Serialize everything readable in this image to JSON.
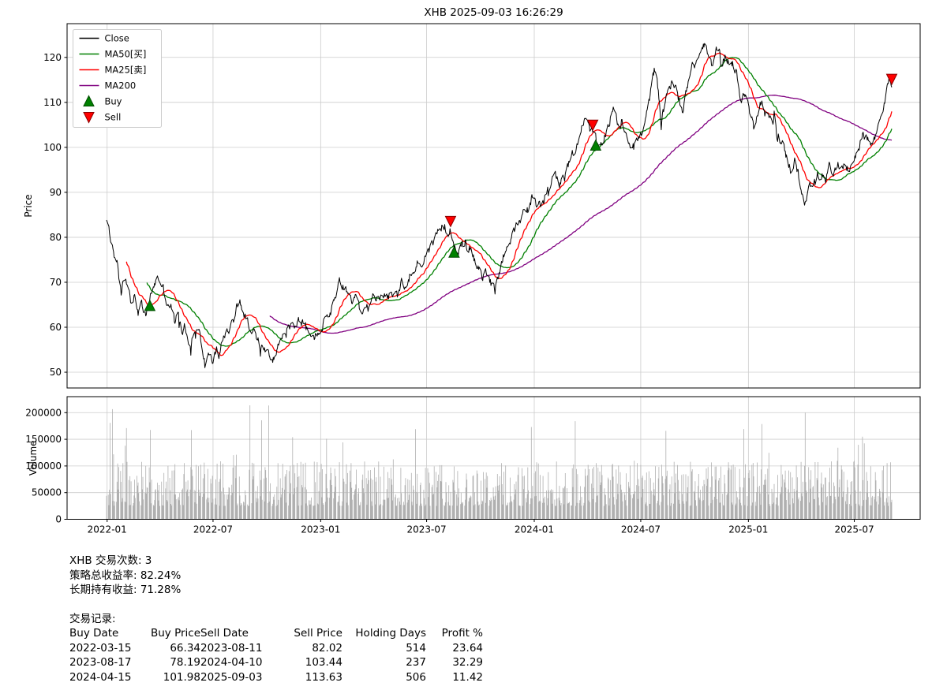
{
  "chart_data": [
    {
      "type": "line",
      "title": "XHB 2025-09-03 16:26:29",
      "ylabel": "Price",
      "ylim": [
        46.5,
        127.5
      ],
      "yticks": [
        50,
        60,
        70,
        80,
        90,
        100,
        110,
        120
      ],
      "xtick_labels": [
        "2022-01",
        "2022-07",
        "2023-01",
        "2023-07",
        "2024-01",
        "2024-07",
        "2025-01",
        "2025-07"
      ],
      "xtick_dates": [
        "2022-01-01",
        "2022-07-01",
        "2023-01-01",
        "2023-07-01",
        "2024-01-01",
        "2024-07-01",
        "2025-01-01",
        "2025-07-01"
      ],
      "x_range": [
        "2021-12-31",
        "2025-09-03"
      ],
      "grid": true,
      "legend_position": "upper left",
      "legend": [
        {
          "label": "Close",
          "type": "line",
          "color": "#000000"
        },
        {
          "label": "MA50[买]",
          "type": "line",
          "color": "#008000"
        },
        {
          "label": "MA25[卖]",
          "type": "line",
          "color": "#ff0000"
        },
        {
          "label": "MA200",
          "type": "line",
          "color": "#800080"
        },
        {
          "label": "Buy",
          "type": "marker-up",
          "color": "#008000"
        },
        {
          "label": "Sell",
          "type": "marker-down",
          "color": "#ff0000"
        }
      ],
      "series": [
        {
          "name": "Close",
          "color": "#000000",
          "anchors": [
            [
              "2021-12-31",
              83.0
            ],
            [
              "2022-01-04",
              82.0
            ],
            [
              "2022-01-07",
              79.5
            ],
            [
              "2022-01-12",
              77.0
            ],
            [
              "2022-01-18",
              74.0
            ],
            [
              "2022-01-21",
              70.5
            ],
            [
              "2022-01-25",
              67.5
            ],
            [
              "2022-01-28",
              69.5
            ],
            [
              "2022-02-02",
              71.0
            ],
            [
              "2022-02-08",
              68.0
            ],
            [
              "2022-02-11",
              66.0
            ],
            [
              "2022-02-16",
              67.0
            ],
            [
              "2022-02-23",
              63.5
            ],
            [
              "2022-03-01",
              65.0
            ],
            [
              "2022-03-08",
              62.5
            ],
            [
              "2022-03-15",
              66.3
            ],
            [
              "2022-03-22",
              69.5
            ],
            [
              "2022-03-29",
              71.0
            ],
            [
              "2022-04-05",
              69.5
            ],
            [
              "2022-04-12",
              66.0
            ],
            [
              "2022-04-20",
              64.5
            ],
            [
              "2022-04-26",
              61.5
            ],
            [
              "2022-05-03",
              62.5
            ],
            [
              "2022-05-10",
              58.5
            ],
            [
              "2022-05-13",
              60.0
            ],
            [
              "2022-05-18",
              57.0
            ],
            [
              "2022-05-24",
              56.5
            ],
            [
              "2022-05-31",
              59.5
            ],
            [
              "2022-06-07",
              60.0
            ],
            [
              "2022-06-13",
              54.5
            ],
            [
              "2022-06-17",
              51.5
            ],
            [
              "2022-06-24",
              54.0
            ],
            [
              "2022-06-30",
              52.5
            ],
            [
              "2022-07-07",
              55.5
            ],
            [
              "2022-07-14",
              55.0
            ],
            [
              "2022-07-21",
              58.0
            ],
            [
              "2022-07-28",
              59.5
            ],
            [
              "2022-08-03",
              61.0
            ],
            [
              "2022-08-10",
              64.0
            ],
            [
              "2022-08-16",
              66.3
            ],
            [
              "2022-08-23",
              62.5
            ],
            [
              "2022-08-30",
              61.0
            ],
            [
              "2022-09-06",
              60.0
            ],
            [
              "2022-09-13",
              57.0
            ],
            [
              "2022-09-20",
              56.0
            ],
            [
              "2022-09-27",
              54.5
            ],
            [
              "2022-09-30",
              55.5
            ],
            [
              "2022-10-06",
              54.5
            ],
            [
              "2022-10-12",
              53.0
            ],
            [
              "2022-10-20",
              55.5
            ],
            [
              "2022-10-27",
              58.5
            ],
            [
              "2022-11-03",
              57.5
            ],
            [
              "2022-11-10",
              61.0
            ],
            [
              "2022-11-17",
              60.0
            ],
            [
              "2022-11-23",
              61.5
            ],
            [
              "2022-12-01",
              61.0
            ],
            [
              "2022-12-08",
              59.5
            ],
            [
              "2022-12-15",
              57.5
            ],
            [
              "2022-12-22",
              58.0
            ],
            [
              "2022-12-29",
              58.5
            ],
            [
              "2023-01-05",
              60.5
            ],
            [
              "2023-01-12",
              63.0
            ],
            [
              "2023-01-19",
              63.5
            ],
            [
              "2023-01-26",
              66.0
            ],
            [
              "2023-02-02",
              70.0
            ],
            [
              "2023-02-09",
              69.0
            ],
            [
              "2023-02-16",
              68.0
            ],
            [
              "2023-02-24",
              64.5
            ],
            [
              "2023-03-03",
              66.5
            ],
            [
              "2023-03-10",
              63.0
            ],
            [
              "2023-03-17",
              63.5
            ],
            [
              "2023-03-24",
              64.5
            ],
            [
              "2023-03-31",
              66.5
            ],
            [
              "2023-04-06",
              66.0
            ],
            [
              "2023-04-14",
              67.5
            ],
            [
              "2023-04-21",
              67.5
            ],
            [
              "2023-04-28",
              67.0
            ],
            [
              "2023-05-05",
              66.5
            ],
            [
              "2023-05-12",
              67.0
            ],
            [
              "2023-05-19",
              69.5
            ],
            [
              "2023-05-25",
              68.5
            ],
            [
              "2023-06-02",
              71.5
            ],
            [
              "2023-06-09",
              72.0
            ],
            [
              "2023-06-16",
              74.5
            ],
            [
              "2023-06-23",
              74.0
            ],
            [
              "2023-06-30",
              76.5
            ],
            [
              "2023-07-07",
              77.5
            ],
            [
              "2023-07-14",
              79.5
            ],
            [
              "2023-07-21",
              81.5
            ],
            [
              "2023-07-27",
              83.0
            ],
            [
              "2023-08-01",
              82.0
            ],
            [
              "2023-08-07",
              81.5
            ],
            [
              "2023-08-11",
              82.0
            ],
            [
              "2023-08-17",
              78.2
            ],
            [
              "2023-08-24",
              76.5
            ],
            [
              "2023-08-31",
              78.0
            ],
            [
              "2023-09-07",
              77.5
            ],
            [
              "2023-09-14",
              78.0
            ],
            [
              "2023-09-21",
              74.5
            ],
            [
              "2023-09-28",
              72.5
            ],
            [
              "2023-10-04",
              71.5
            ],
            [
              "2023-10-11",
              72.0
            ],
            [
              "2023-10-18",
              70.0
            ],
            [
              "2023-10-25",
              69.0
            ],
            [
              "2023-11-01",
              71.5
            ],
            [
              "2023-11-08",
              75.5
            ],
            [
              "2023-11-15",
              78.5
            ],
            [
              "2023-11-22",
              79.5
            ],
            [
              "2023-12-01",
              82.0
            ],
            [
              "2023-12-08",
              83.0
            ],
            [
              "2023-12-14",
              86.5
            ],
            [
              "2023-12-21",
              86.0
            ],
            [
              "2023-12-28",
              89.0
            ],
            [
              "2024-01-04",
              87.0
            ],
            [
              "2024-01-11",
              87.5
            ],
            [
              "2024-01-18",
              88.5
            ],
            [
              "2024-01-25",
              91.5
            ],
            [
              "2024-02-01",
              92.5
            ],
            [
              "2024-02-08",
              94.0
            ],
            [
              "2024-02-13",
              91.5
            ],
            [
              "2024-02-21",
              93.0
            ],
            [
              "2024-02-28",
              95.5
            ],
            [
              "2024-03-06",
              98.5
            ],
            [
              "2024-03-13",
              100.5
            ],
            [
              "2024-03-20",
              103.5
            ],
            [
              "2024-03-27",
              106.0
            ],
            [
              "2024-04-03",
              104.5
            ],
            [
              "2024-04-10",
              103.4
            ],
            [
              "2024-04-15",
              102.0
            ],
            [
              "2024-04-19",
              99.0
            ],
            [
              "2024-04-26",
              101.5
            ],
            [
              "2024-05-03",
              103.5
            ],
            [
              "2024-05-10",
              106.5
            ],
            [
              "2024-05-16",
              108.5
            ],
            [
              "2024-05-23",
              105.5
            ],
            [
              "2024-05-31",
              104.5
            ],
            [
              "2024-06-07",
              103.0
            ],
            [
              "2024-06-14",
              100.5
            ],
            [
              "2024-06-21",
              101.5
            ],
            [
              "2024-06-28",
              102.0
            ],
            [
              "2024-07-05",
              103.5
            ],
            [
              "2024-07-11",
              107.0
            ],
            [
              "2024-07-16",
              111.0
            ],
            [
              "2024-07-24",
              117.0
            ],
            [
              "2024-07-31",
              113.0
            ],
            [
              "2024-08-05",
              103.5
            ],
            [
              "2024-08-08",
              107.5
            ],
            [
              "2024-08-15",
              111.5
            ],
            [
              "2024-08-22",
              114.5
            ],
            [
              "2024-08-29",
              114.0
            ],
            [
              "2024-09-05",
              110.0
            ],
            [
              "2024-09-11",
              108.5
            ],
            [
              "2024-09-18",
              114.0
            ],
            [
              "2024-09-26",
              117.5
            ],
            [
              "2024-10-04",
              119.0
            ],
            [
              "2024-10-11",
              121.0
            ],
            [
              "2024-10-17",
              123.0
            ],
            [
              "2024-10-25",
              120.0
            ],
            [
              "2024-10-31",
              118.0
            ],
            [
              "2024-11-06",
              121.5
            ],
            [
              "2024-11-11",
              122.5
            ],
            [
              "2024-11-15",
              119.0
            ],
            [
              "2024-11-22",
              120.0
            ],
            [
              "2024-11-27",
              119.5
            ],
            [
              "2024-12-05",
              118.0
            ],
            [
              "2024-12-12",
              116.0
            ],
            [
              "2024-12-18",
              110.5
            ],
            [
              "2024-12-27",
              112.5
            ],
            [
              "2025-01-03",
              108.0
            ],
            [
              "2025-01-10",
              104.5
            ],
            [
              "2025-01-16",
              108.0
            ],
            [
              "2025-01-23",
              110.5
            ],
            [
              "2025-01-31",
              107.0
            ],
            [
              "2025-02-07",
              106.5
            ],
            [
              "2025-02-14",
              105.5
            ],
            [
              "2025-02-21",
              101.0
            ],
            [
              "2025-02-28",
              100.5
            ],
            [
              "2025-03-07",
              98.0
            ],
            [
              "2025-03-14",
              95.0
            ],
            [
              "2025-03-21",
              97.0
            ],
            [
              "2025-03-28",
              93.5
            ],
            [
              "2025-04-04",
              89.0
            ],
            [
              "2025-04-09",
              87.0
            ],
            [
              "2025-04-15",
              92.0
            ],
            [
              "2025-04-22",
              90.5
            ],
            [
              "2025-04-29",
              93.5
            ],
            [
              "2025-05-06",
              94.5
            ],
            [
              "2025-05-13",
              93.5
            ],
            [
              "2025-05-20",
              96.5
            ],
            [
              "2025-05-27",
              94.0
            ],
            [
              "2025-06-03",
              96.0
            ],
            [
              "2025-06-10",
              97.0
            ],
            [
              "2025-06-17",
              94.5
            ],
            [
              "2025-06-24",
              95.5
            ],
            [
              "2025-07-01",
              98.0
            ],
            [
              "2025-07-08",
              100.0
            ],
            [
              "2025-07-15",
              102.5
            ],
            [
              "2025-07-22",
              103.0
            ],
            [
              "2025-07-29",
              100.5
            ],
            [
              "2025-08-05",
              102.0
            ],
            [
              "2025-08-12",
              105.5
            ],
            [
              "2025-08-19",
              109.0
            ],
            [
              "2025-08-26",
              113.0
            ],
            [
              "2025-08-29",
              115.5
            ],
            [
              "2025-09-03",
              113.6
            ]
          ]
        },
        {
          "name": "MA50",
          "color": "#008000",
          "window": 50,
          "derived_from": "Close"
        },
        {
          "name": "MA25",
          "color": "#ff0000",
          "window": 25,
          "derived_from": "Close"
        },
        {
          "name": "MA200",
          "color": "#800080",
          "window": 200,
          "derived_from": "Close"
        }
      ],
      "buy_markers": [
        [
          "2022-03-15",
          66.34
        ],
        [
          "2023-08-17",
          78.19
        ],
        [
          "2024-04-15",
          101.98
        ]
      ],
      "sell_markers": [
        [
          "2023-08-11",
          82.02
        ],
        [
          "2024-04-10",
          103.44
        ],
        [
          "2025-09-03",
          113.63
        ]
      ]
    },
    {
      "type": "bar",
      "ylabel": "Volume",
      "ylim": [
        0,
        230000
      ],
      "yticks": [
        0,
        50000,
        100000,
        150000,
        200000
      ],
      "bar_color": "#b0b0b0",
      "approx_bar_range": [
        15000,
        218000
      ]
    }
  ],
  "stats": {
    "line1": "XHB 交易次数: 3",
    "line2": "策略总收益率: 82.24%",
    "line3": "长期持有收益: 71.28%",
    "records_title": "交易记录:"
  },
  "trades": {
    "header": [
      "Buy Date",
      "Buy Price",
      "Sell Date",
      "Sell Price",
      "Holding Days",
      "Profit %"
    ],
    "rows": [
      [
        "2022-03-15",
        "66.34",
        "2023-08-11",
        "82.02",
        "514",
        "23.64"
      ],
      [
        "2023-08-17",
        "78.19",
        "2024-04-10",
        "103.44",
        "237",
        "32.29"
      ],
      [
        "2024-04-15",
        "101.98",
        "2025-09-03",
        "113.63",
        "506",
        "11.42"
      ]
    ]
  }
}
